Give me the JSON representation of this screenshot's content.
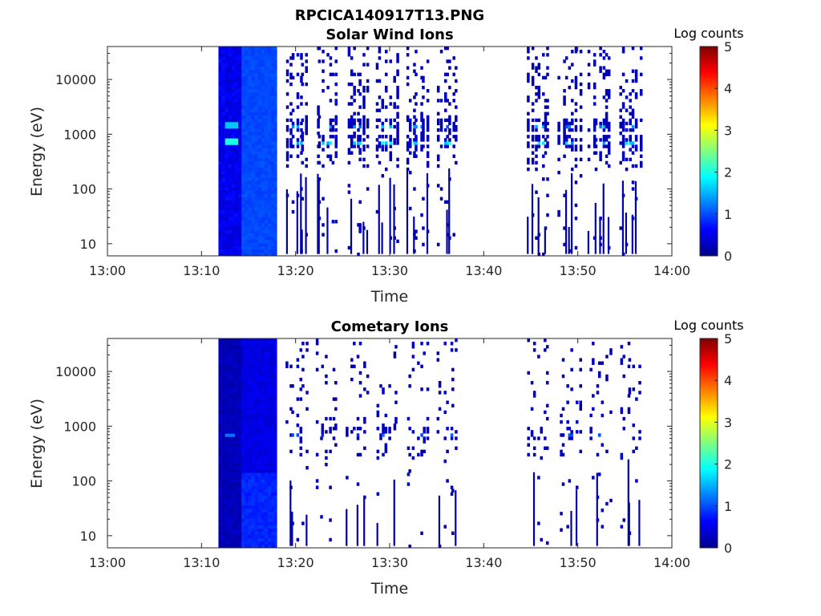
{
  "figure": {
    "file_title": "RPCICA140917T13.PNG"
  },
  "colors": {
    "background": "#ffffff",
    "axis": "#262626",
    "colormap": [
      "#00008f",
      "#0000ff",
      "#0080ff",
      "#00ffff",
      "#80ff80",
      "#ffff00",
      "#ff8000",
      "#ff0000",
      "#800000"
    ]
  },
  "chart_data": [
    {
      "type": "heatmap",
      "title": "Solar Wind Ions",
      "xlabel": "Time",
      "ylabel": "Energy (eV)",
      "x_ticks": [
        "13:00",
        "13:10",
        "13:20",
        "13:30",
        "13:40",
        "13:50",
        "14:00"
      ],
      "xlim_minutes": [
        0,
        60
      ],
      "y_scale": "log",
      "y_ticks": [
        10,
        100,
        1000,
        10000
      ],
      "y_tick_labels": [
        "10",
        "100",
        "1000",
        "10000"
      ],
      "ylim": [
        6,
        40000
      ],
      "colorbar": {
        "label": "Log counts",
        "range": [
          0,
          5
        ],
        "ticks": [
          "0",
          "1",
          "2",
          "3",
          "4",
          "5"
        ]
      },
      "data_start_minute": 11.8,
      "dense_block_end_minute": 18.0,
      "sweeps_minutes": [
        20,
        23.2,
        26.5,
        29.6,
        32.8,
        36,
        45.7,
        49,
        52.2,
        55.5
      ],
      "gaps_minutes": [
        [
          37.5,
          44.2
        ],
        [
          57,
          60
        ]
      ],
      "peak_energies_ev": [
        700,
        1400
      ],
      "peak_log_counts": [
        2.0,
        1.6
      ]
    },
    {
      "type": "heatmap",
      "title": "Cometary Ions",
      "xlabel": "Time",
      "ylabel": "Energy (eV)",
      "x_ticks": [
        "13:00",
        "13:10",
        "13:20",
        "13:30",
        "13:40",
        "13:50",
        "14:00"
      ],
      "xlim_minutes": [
        0,
        60
      ],
      "y_scale": "log",
      "y_ticks": [
        10,
        100,
        1000,
        10000
      ],
      "y_tick_labels": [
        "10",
        "100",
        "1000",
        "10000"
      ],
      "ylim": [
        6,
        40000
      ],
      "colorbar": {
        "label": "Log counts",
        "range": [
          0,
          5
        ],
        "ticks": [
          "0",
          "1",
          "2",
          "3",
          "4",
          "5"
        ]
      },
      "data_start_minute": 11.8,
      "dense_block_end_minute": 18.0,
      "sweeps_minutes": [
        20,
        23.2,
        26.5,
        29.6,
        32.8,
        36,
        45.7,
        49,
        52.2,
        55.5
      ],
      "gaps_minutes": [
        [
          37.5,
          44.2
        ],
        [
          57,
          60
        ]
      ],
      "peak_energies_ev": [
        700
      ],
      "peak_log_counts": [
        1.2
      ]
    }
  ]
}
